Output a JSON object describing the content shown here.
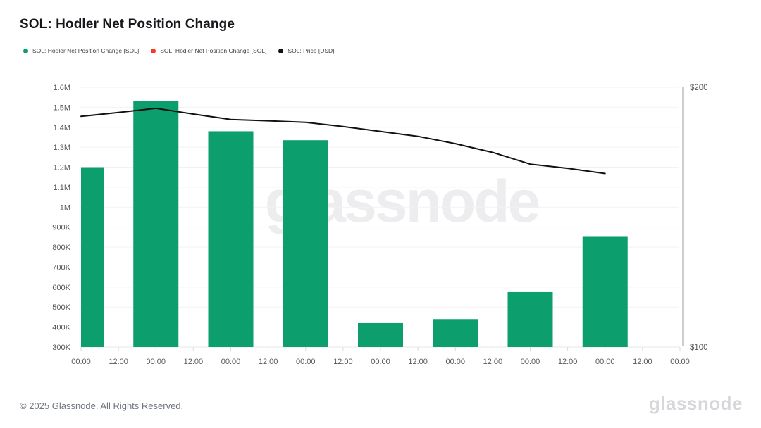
{
  "header": {
    "title": "SOL: Hodler Net Position Change"
  },
  "legend": {
    "items": [
      {
        "label": "SOL: Hodler Net Position Change [SOL]",
        "color": "#0d9e6e"
      },
      {
        "label": "SOL: Hodler Net Position Change [SOL]",
        "color": "#f43b2a"
      },
      {
        "label": "SOL: Price [USD]",
        "color": "#111111"
      }
    ]
  },
  "watermark": {
    "text": "glassnode"
  },
  "footer": {
    "copyright": "© 2025 Glassnode. All Rights Reserved.",
    "brand": "glassnode"
  },
  "chart_data": {
    "type": "bar",
    "title": "SOL: Hodler Net Position Change",
    "x_tick_labels": [
      "00:00",
      "12:00",
      "00:00",
      "12:00",
      "00:00",
      "12:00",
      "00:00",
      "12:00",
      "00:00",
      "12:00",
      "00:00",
      "12:00",
      "00:00",
      "12:00",
      "00:00",
      "12:00",
      "00:00"
    ],
    "left_axis": {
      "label": "Hodler Net Position Change [SOL]",
      "min": 300000,
      "max": 1600000,
      "step": 100000,
      "tick_labels": [
        "1.6M",
        "1.5M",
        "1.4M",
        "1.3M",
        "1.2M",
        "1.1M",
        "1M",
        "900K",
        "800K",
        "700K",
        "600K",
        "500K",
        "400K",
        "300K"
      ]
    },
    "right_axis": {
      "label": "Price [USD]",
      "min": 100,
      "max": 200,
      "tick_labels": [
        "$200",
        "$100"
      ]
    },
    "grid": true,
    "legend_position": "top-left",
    "series": [
      {
        "name": "SOL: Hodler Net Position Change [SOL]",
        "type": "bar",
        "color": "#0d9e6e",
        "tick_index": [
          0,
          2,
          4,
          6,
          8,
          10,
          12,
          14
        ],
        "values": [
          1200000,
          1530000,
          1380000,
          1335000,
          420000,
          440000,
          575000,
          855000
        ]
      },
      {
        "name": "SOL: Hodler Net Position Change [SOL]",
        "type": "bar",
        "color": "#f43b2a",
        "tick_index": [],
        "values": []
      },
      {
        "name": "SOL: Price [USD]",
        "type": "line",
        "color": "#111111",
        "tick_index": [
          0,
          1,
          2,
          3,
          4,
          5,
          6,
          7,
          8,
          9,
          10,
          11,
          12,
          13,
          14
        ],
        "values": [
          188.8,
          190.3,
          191.9,
          189.7,
          187.6,
          187.1,
          186.5,
          184.9,
          183.0,
          181.1,
          178.3,
          174.9,
          170.4,
          168.8,
          166.8
        ]
      }
    ]
  }
}
